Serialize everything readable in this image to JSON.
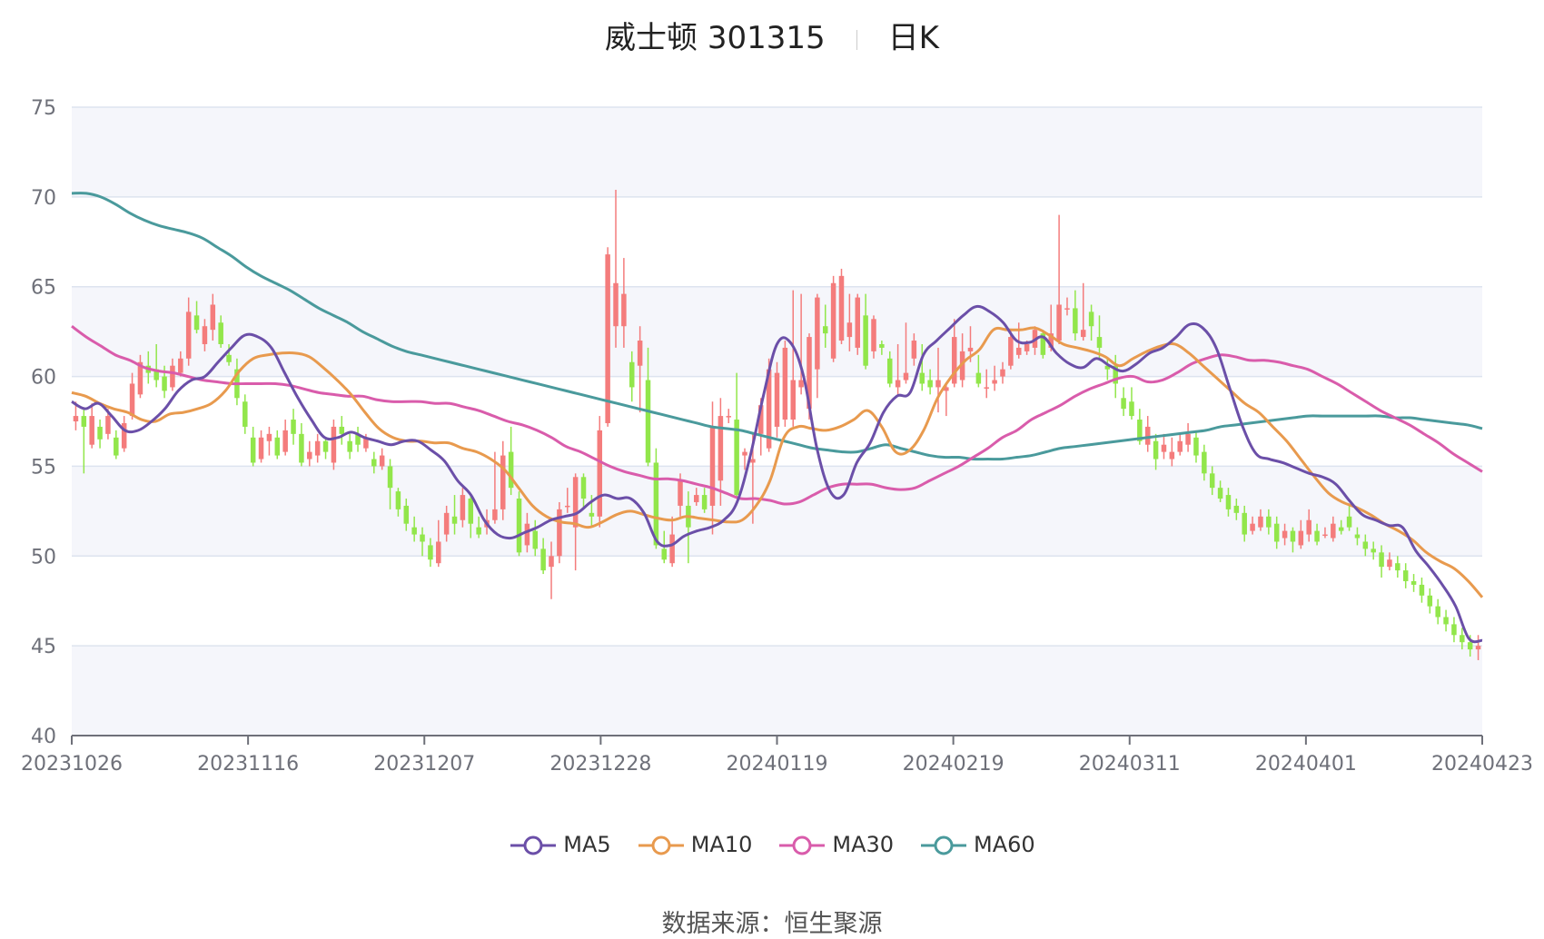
{
  "title": {
    "name": "威士顿 301315",
    "period": "日K"
  },
  "source": {
    "label": "数据来源：",
    "value": "恒生聚源"
  },
  "colors": {
    "up": "#f47c7c",
    "down": "#92e64b",
    "MA5": "#6b4fa8",
    "MA10": "#e89a4e",
    "MA30": "#d95cab",
    "MA60": "#4a9a9c",
    "grid": "#dde3ef",
    "band": "#f5f6fb"
  },
  "chart_data": {
    "type": "candlestick",
    "ylim": [
      40,
      75
    ],
    "yticks": [
      "40",
      "45",
      "50",
      "55",
      "60",
      "65",
      "70",
      "75"
    ],
    "xticks": [
      "20231026",
      "20231116",
      "20231207",
      "20231228",
      "20240119",
      "20240219",
      "20240311",
      "20240401",
      "20240423"
    ],
    "legend": [
      "MA5",
      "MA10",
      "MA30",
      "MA60"
    ],
    "legend_position": "bottom",
    "candles": [
      [
        57.5,
        57.8,
        57.0,
        58.6
      ],
      [
        57.8,
        57.2,
        54.6,
        58.2
      ],
      [
        56.2,
        57.8,
        56.0,
        58.5
      ],
      [
        57.2,
        56.5,
        56.0,
        57.6
      ],
      [
        56.8,
        57.8,
        56.5,
        58.2
      ],
      [
        56.6,
        55.6,
        55.4,
        57.0
      ],
      [
        56.0,
        57.4,
        55.8,
        57.8
      ],
      [
        57.8,
        59.6,
        57.6,
        60.2
      ],
      [
        59.0,
        60.8,
        58.8,
        61.2
      ],
      [
        60.6,
        60.2,
        59.6,
        61.4
      ],
      [
        60.4,
        59.8,
        59.4,
        61.8
      ],
      [
        60.0,
        59.2,
        58.8,
        60.6
      ],
      [
        59.4,
        60.6,
        59.2,
        61.0
      ],
      [
        60.2,
        61.0,
        60.0,
        61.4
      ],
      [
        61.0,
        63.6,
        60.6,
        64.4
      ],
      [
        63.4,
        62.6,
        62.4,
        64.2
      ],
      [
        61.8,
        62.8,
        61.4,
        63.2
      ],
      [
        62.6,
        64.0,
        62.0,
        64.6
      ],
      [
        63.0,
        61.8,
        61.6,
        63.4
      ],
      [
        61.2,
        60.8,
        60.6,
        61.8
      ],
      [
        60.4,
        58.8,
        58.4,
        61.0
      ],
      [
        58.6,
        57.2,
        56.8,
        59.0
      ],
      [
        56.6,
        55.2,
        55.0,
        57.2
      ],
      [
        55.4,
        56.6,
        55.2,
        57.0
      ],
      [
        56.4,
        56.8,
        55.6,
        57.2
      ],
      [
        56.6,
        55.6,
        55.4,
        57.0
      ],
      [
        55.8,
        57.0,
        55.6,
        57.6
      ],
      [
        57.6,
        56.8,
        56.2,
        58.2
      ],
      [
        56.8,
        55.2,
        55.0,
        57.4
      ],
      [
        55.4,
        55.8,
        55.0,
        56.4
      ],
      [
        55.6,
        56.4,
        55.2,
        56.8
      ],
      [
        56.4,
        55.8,
        55.4,
        56.6
      ],
      [
        55.2,
        57.2,
        54.8,
        57.6
      ],
      [
        57.2,
        56.8,
        56.2,
        57.8
      ],
      [
        56.4,
        55.8,
        55.4,
        56.8
      ],
      [
        56.8,
        56.2,
        55.8,
        57.2
      ],
      [
        56.0,
        56.6,
        55.8,
        56.8
      ],
      [
        55.4,
        55.0,
        54.6,
        55.8
      ],
      [
        55.0,
        55.6,
        54.8,
        56.0
      ],
      [
        55.0,
        53.8,
        52.6,
        55.4
      ],
      [
        53.6,
        52.6,
        52.2,
        53.8
      ],
      [
        52.8,
        51.8,
        51.4,
        53.2
      ],
      [
        51.6,
        51.2,
        50.8,
        52.2
      ],
      [
        51.2,
        50.8,
        50.0,
        51.6
      ],
      [
        50.6,
        49.8,
        49.4,
        51.0
      ],
      [
        49.6,
        50.8,
        49.4,
        52.0
      ],
      [
        51.2,
        52.4,
        50.8,
        52.8
      ],
      [
        52.2,
        51.8,
        51.2,
        53.4
      ],
      [
        52.0,
        53.4,
        51.6,
        53.8
      ],
      [
        53.2,
        51.8,
        51.0,
        53.4
      ],
      [
        51.6,
        51.2,
        51.0,
        52.2
      ],
      [
        51.6,
        52.0,
        51.2,
        52.6
      ],
      [
        52.0,
        52.6,
        51.8,
        55.8
      ],
      [
        52.6,
        55.6,
        52.0,
        56.4
      ],
      [
        55.8,
        53.8,
        53.4,
        57.2
      ],
      [
        53.2,
        50.2,
        50.0,
        53.6
      ],
      [
        50.6,
        51.8,
        50.2,
        52.4
      ],
      [
        51.4,
        50.4,
        50.0,
        52.0
      ],
      [
        50.4,
        49.2,
        49.0,
        51.0
      ],
      [
        49.4,
        50.0,
        47.6,
        50.8
      ],
      [
        50.0,
        52.6,
        49.6,
        53.0
      ],
      [
        52.8,
        52.8,
        52.4,
        53.8
      ],
      [
        51.6,
        54.4,
        49.2,
        54.6
      ],
      [
        54.4,
        53.2,
        52.6,
        54.6
      ],
      [
        52.4,
        52.2,
        51.6,
        53.4
      ],
      [
        52.2,
        57.0,
        51.6,
        57.8
      ],
      [
        57.4,
        66.8,
        57.2,
        67.2
      ],
      [
        62.8,
        65.2,
        61.6,
        70.4
      ],
      [
        62.8,
        64.6,
        61.6,
        66.6
      ],
      [
        60.8,
        59.4,
        58.6,
        61.4
      ],
      [
        60.6,
        62.0,
        58.0,
        62.8
      ],
      [
        59.8,
        55.2,
        55.0,
        61.6
      ],
      [
        55.2,
        50.6,
        50.4,
        56.0
      ],
      [
        50.4,
        49.8,
        49.6,
        51.4
      ],
      [
        49.6,
        51.2,
        49.4,
        52.2
      ],
      [
        52.8,
        54.2,
        52.2,
        54.6
      ],
      [
        52.8,
        51.6,
        49.6,
        53.6
      ],
      [
        53.0,
        53.4,
        52.8,
        53.8
      ],
      [
        53.4,
        52.6,
        52.4,
        53.8
      ],
      [
        52.8,
        57.2,
        51.2,
        58.6
      ],
      [
        54.2,
        57.8,
        52.8,
        58.8
      ],
      [
        57.8,
        57.8,
        57.4,
        58.2
      ],
      [
        57.6,
        53.4,
        53.2,
        60.2
      ],
      [
        55.6,
        55.8,
        54.8,
        56.0
      ],
      [
        55.2,
        55.4,
        51.8,
        56.8
      ],
      [
        56.8,
        58.4,
        55.6,
        58.8
      ],
      [
        56.0,
        60.4,
        55.8,
        61.0
      ],
      [
        57.2,
        60.2,
        56.6,
        60.8
      ],
      [
        57.6,
        61.6,
        57.2,
        62.0
      ],
      [
        57.6,
        59.8,
        57.2,
        64.8
      ],
      [
        59.4,
        59.8,
        59.0,
        64.6
      ],
      [
        58.2,
        62.2,
        57.6,
        62.4
      ],
      [
        60.4,
        64.4,
        58.8,
        64.6
      ],
      [
        62.8,
        62.4,
        61.6,
        64.0
      ],
      [
        61.0,
        65.2,
        60.8,
        65.6
      ],
      [
        62.0,
        65.6,
        61.8,
        66.0
      ],
      [
        62.2,
        63.0,
        61.4,
        64.6
      ],
      [
        61.6,
        64.4,
        61.2,
        64.6
      ],
      [
        63.4,
        60.6,
        60.4,
        64.6
      ],
      [
        61.4,
        63.2,
        61.0,
        63.4
      ],
      [
        61.8,
        61.6,
        61.2,
        62.0
      ],
      [
        61.0,
        59.6,
        59.4,
        61.4
      ],
      [
        59.4,
        59.8,
        59.0,
        61.8
      ],
      [
        59.8,
        60.2,
        59.6,
        63.0
      ],
      [
        61.0,
        62.0,
        60.6,
        62.4
      ],
      [
        60.2,
        59.6,
        59.2,
        61.8
      ],
      [
        59.8,
        59.4,
        59.0,
        60.4
      ],
      [
        59.4,
        59.8,
        58.0,
        61.6
      ],
      [
        59.2,
        59.4,
        57.8,
        59.6
      ],
      [
        59.6,
        62.2,
        59.4,
        63.2
      ],
      [
        59.8,
        61.4,
        59.4,
        62.4
      ],
      [
        61.4,
        61.6,
        60.8,
        62.8
      ],
      [
        60.2,
        59.6,
        59.4,
        61.2
      ],
      [
        59.4,
        59.4,
        58.8,
        60.4
      ],
      [
        59.6,
        59.8,
        59.2,
        60.6
      ],
      [
        60.0,
        60.4,
        59.6,
        60.8
      ],
      [
        60.6,
        62.2,
        60.4,
        62.6
      ],
      [
        61.2,
        61.6,
        61.0,
        63.0
      ],
      [
        61.4,
        61.8,
        61.2,
        62.0
      ],
      [
        61.6,
        62.6,
        61.2,
        62.8
      ],
      [
        62.4,
        61.2,
        61.0,
        62.6
      ],
      [
        61.6,
        62.4,
        61.4,
        64.0
      ],
      [
        62.0,
        64.0,
        61.8,
        69.0
      ],
      [
        63.8,
        63.8,
        63.4,
        64.4
      ],
      [
        63.8,
        62.4,
        62.0,
        64.8
      ],
      [
        62.2,
        62.6,
        62.0,
        65.2
      ],
      [
        63.6,
        62.8,
        62.0,
        64.0
      ],
      [
        62.2,
        61.6,
        61.0,
        63.4
      ],
      [
        60.6,
        60.4,
        59.8,
        61.0
      ],
      [
        60.6,
        59.6,
        58.8,
        61.2
      ],
      [
        58.8,
        58.2,
        57.8,
        59.4
      ],
      [
        58.6,
        57.8,
        57.6,
        59.4
      ],
      [
        57.6,
        56.4,
        56.2,
        58.2
      ],
      [
        56.2,
        57.2,
        55.8,
        57.8
      ],
      [
        56.4,
        55.4,
        54.8,
        56.8
      ],
      [
        55.8,
        56.2,
        55.4,
        56.8
      ],
      [
        55.4,
        55.8,
        55.0,
        56.6
      ],
      [
        55.8,
        56.4,
        55.6,
        56.8
      ],
      [
        56.2,
        56.8,
        55.8,
        57.4
      ],
      [
        56.6,
        55.6,
        55.2,
        57.0
      ],
      [
        55.8,
        54.6,
        54.2,
        56.2
      ],
      [
        54.6,
        53.8,
        53.4,
        55.0
      ],
      [
        53.8,
        53.2,
        53.0,
        54.2
      ],
      [
        53.4,
        52.6,
        52.2,
        53.8
      ],
      [
        52.8,
        52.4,
        52.0,
        53.2
      ],
      [
        52.4,
        51.2,
        50.8,
        52.8
      ],
      [
        51.4,
        51.8,
        51.2,
        52.2
      ],
      [
        51.6,
        52.2,
        51.4,
        52.6
      ],
      [
        52.2,
        51.6,
        51.2,
        52.6
      ],
      [
        51.8,
        50.8,
        50.4,
        52.2
      ],
      [
        51.0,
        51.4,
        50.6,
        51.8
      ],
      [
        51.4,
        50.8,
        50.2,
        51.6
      ],
      [
        50.6,
        51.4,
        50.4,
        52.0
      ],
      [
        51.2,
        52.0,
        50.8,
        52.6
      ],
      [
        51.4,
        50.8,
        50.6,
        51.8
      ],
      [
        51.2,
        51.2,
        51.0,
        51.6
      ],
      [
        51.0,
        51.8,
        50.8,
        52.2
      ],
      [
        51.6,
        51.4,
        51.2,
        52.0
      ],
      [
        52.2,
        51.6,
        51.4,
        52.8
      ],
      [
        51.2,
        51.0,
        50.6,
        51.6
      ],
      [
        50.8,
        50.4,
        50.0,
        51.2
      ],
      [
        50.4,
        50.2,
        49.8,
        50.8
      ],
      [
        50.2,
        49.4,
        48.8,
        50.6
      ],
      [
        49.4,
        49.8,
        49.2,
        50.2
      ],
      [
        49.6,
        49.2,
        48.8,
        50.0
      ],
      [
        49.2,
        48.6,
        48.2,
        49.6
      ],
      [
        48.6,
        48.4,
        48.0,
        49.0
      ],
      [
        48.4,
        47.8,
        47.4,
        48.8
      ],
      [
        47.8,
        47.2,
        46.8,
        48.2
      ],
      [
        47.2,
        46.6,
        46.2,
        47.6
      ],
      [
        46.6,
        46.2,
        45.8,
        47.0
      ],
      [
        46.2,
        45.6,
        45.2,
        46.6
      ],
      [
        45.6,
        45.2,
        44.8,
        46.0
      ],
      [
        45.2,
        44.8,
        44.4,
        45.6
      ],
      [
        44.8,
        45.0,
        44.2,
        45.6
      ]
    ],
    "note": "candles: [open, close, low, high]",
    "ma": {
      "MA5": [
        58.6,
        58.2,
        58.5,
        57.8,
        57.0,
        57.0,
        57.5,
        58.2,
        59.2,
        59.8,
        60.0,
        60.8,
        61.6,
        62.3,
        62.2,
        61.6,
        60.2,
        58.8,
        57.6,
        56.6,
        56.6,
        56.9,
        56.6,
        56.4,
        56.2,
        56.4,
        56.4,
        55.9,
        55.3,
        54.2,
        53.4,
        52.0,
        51.2,
        51.0,
        51.3,
        51.6,
        52.0,
        52.2,
        52.4,
        53.0,
        53.4,
        53.2,
        53.2,
        52.4,
        50.8,
        50.6,
        51.1,
        51.4,
        51.6,
        52.0,
        53.0,
        55.6,
        59.0,
        61.8,
        61.9,
        60.0,
        56.0,
        53.6,
        53.4,
        55.2,
        56.3,
        58.0,
        58.9,
        59.1,
        61.2,
        62.0,
        62.7,
        63.4,
        63.9,
        63.6,
        63.0,
        62.0,
        61.9,
        62.2,
        61.3,
        60.7,
        60.5,
        61.0,
        60.6,
        60.3,
        60.7,
        61.3,
        61.6,
        62.2,
        62.9,
        62.7,
        61.6,
        59.4,
        57.2,
        55.7,
        55.4,
        55.2,
        54.9,
        54.6,
        54.4,
        54.0,
        53.1,
        52.3,
        52.0,
        51.7,
        51.6,
        50.3,
        49.4,
        48.4,
        47.2,
        45.4,
        45.3
      ],
      "MA10": [
        59.1,
        58.9,
        58.5,
        58.2,
        58.0,
        57.6,
        57.5,
        57.9,
        58.0,
        58.2,
        58.5,
        59.2,
        60.3,
        61.0,
        61.2,
        61.3,
        61.3,
        61.1,
        60.5,
        59.8,
        59.0,
        58.0,
        57.1,
        56.6,
        56.4,
        56.4,
        56.3,
        56.3,
        56.0,
        55.8,
        55.4,
        54.8,
        53.8,
        52.8,
        52.2,
        51.9,
        51.8,
        51.6,
        51.9,
        52.3,
        52.5,
        52.3,
        52.1,
        52.0,
        52.2,
        52.1,
        52.0,
        51.9,
        52.0,
        52.8,
        54.2,
        56.6,
        57.2,
        57.1,
        57.0,
        57.2,
        57.6,
        58.1,
        57.2,
        55.8,
        55.9,
        57.0,
        58.8,
        60.0,
        60.9,
        61.5,
        62.6,
        62.6,
        62.6,
        62.7,
        62.3,
        61.8,
        61.6,
        61.4,
        61.1,
        60.6,
        61.0,
        61.4,
        61.7,
        61.8,
        61.3,
        60.6,
        59.9,
        59.2,
        58.5,
        58.0,
        57.2,
        56.4,
        55.4,
        54.4,
        53.5,
        53.0,
        52.7,
        52.3,
        51.8,
        51.4,
        50.9,
        50.2,
        49.7,
        49.3,
        48.6,
        47.7
      ],
      "MA30": [
        62.8,
        62.2,
        61.7,
        61.2,
        60.9,
        60.5,
        60.3,
        60.2,
        60.0,
        59.8,
        59.7,
        59.6,
        59.6,
        59.6,
        59.6,
        59.5,
        59.3,
        59.1,
        59.0,
        58.9,
        58.9,
        58.7,
        58.6,
        58.6,
        58.6,
        58.5,
        58.5,
        58.3,
        58.1,
        57.8,
        57.5,
        57.3,
        57.0,
        56.6,
        56.1,
        55.8,
        55.4,
        55.0,
        54.7,
        54.5,
        54.3,
        54.3,
        54.2,
        54.0,
        53.8,
        53.5,
        53.2,
        53.2,
        53.1,
        52.9,
        53.0,
        53.4,
        53.8,
        54.0,
        54.0,
        54.0,
        53.8,
        53.7,
        53.8,
        54.2,
        54.6,
        55.0,
        55.5,
        56.0,
        56.6,
        57.0,
        57.6,
        58.0,
        58.4,
        58.9,
        59.3,
        59.6,
        59.9,
        60.0,
        59.7,
        59.8,
        60.2,
        60.7,
        61.0,
        61.2,
        61.1,
        60.9,
        60.9,
        60.8,
        60.6,
        60.4,
        60.0,
        59.6,
        59.1,
        58.6,
        58.1,
        57.7,
        57.3,
        56.8,
        56.3,
        55.7,
        55.2,
        54.7
      ],
      "MA60": [
        70.2,
        70.2,
        70.0,
        69.6,
        69.1,
        68.7,
        68.4,
        68.2,
        68.0,
        67.7,
        67.2,
        66.7,
        66.1,
        65.6,
        65.2,
        64.8,
        64.3,
        63.8,
        63.4,
        63.0,
        62.5,
        62.1,
        61.7,
        61.4,
        61.2,
        61.0,
        60.8,
        60.6,
        60.4,
        60.2,
        60.0,
        59.8,
        59.6,
        59.4,
        59.2,
        59.0,
        58.8,
        58.6,
        58.4,
        58.2,
        58.0,
        57.8,
        57.6,
        57.4,
        57.2,
        57.1,
        57.0,
        56.8,
        56.6,
        56.4,
        56.2,
        56.0,
        55.9,
        55.8,
        55.8,
        56.0,
        56.2,
        56.0,
        55.8,
        55.6,
        55.5,
        55.5,
        55.4,
        55.4,
        55.4,
        55.5,
        55.6,
        55.8,
        56.0,
        56.1,
        56.2,
        56.3,
        56.4,
        56.5,
        56.6,
        56.7,
        56.8,
        56.9,
        57.0,
        57.2,
        57.3,
        57.4,
        57.5,
        57.6,
        57.7,
        57.8,
        57.8,
        57.8,
        57.8,
        57.8,
        57.8,
        57.7,
        57.7,
        57.6,
        57.5,
        57.4,
        57.3,
        57.1
      ]
    }
  }
}
